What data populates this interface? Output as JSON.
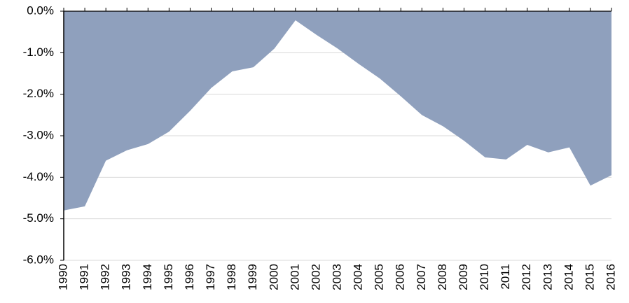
{
  "chart_data": {
    "type": "area",
    "categories": [
      "1990",
      "1991",
      "1992",
      "1993",
      "1994",
      "1995",
      "1996",
      "1997",
      "1998",
      "1999",
      "2000",
      "2001",
      "2002",
      "2003",
      "2004",
      "2005",
      "2006",
      "2007",
      "2008",
      "2009",
      "2010",
      "2011",
      "2012",
      "2013",
      "2014",
      "2015",
      "2016"
    ],
    "values": [
      -4.8,
      -4.7,
      -3.6,
      -3.35,
      -3.2,
      -2.9,
      -2.4,
      -1.85,
      -1.45,
      -1.35,
      -0.9,
      -0.22,
      -0.57,
      -0.9,
      -1.27,
      -1.62,
      -2.05,
      -2.5,
      -2.77,
      -3.12,
      -3.52,
      -3.57,
      -3.22,
      -3.4,
      -3.28,
      -4.2,
      -3.95
    ],
    "color": "#8fa0bd",
    "ylim": [
      -6,
      0
    ],
    "yticks": [
      {
        "value": 0,
        "label": "0.0%"
      },
      {
        "value": -1,
        "label": "-1.0%"
      },
      {
        "value": -2,
        "label": "-2.0%"
      },
      {
        "value": -3,
        "label": "-3.0%"
      },
      {
        "value": -4,
        "label": "-4.0%"
      },
      {
        "value": -5,
        "label": "-5.0%"
      },
      {
        "value": -6,
        "label": "-6.0%"
      }
    ],
    "grid": true
  }
}
